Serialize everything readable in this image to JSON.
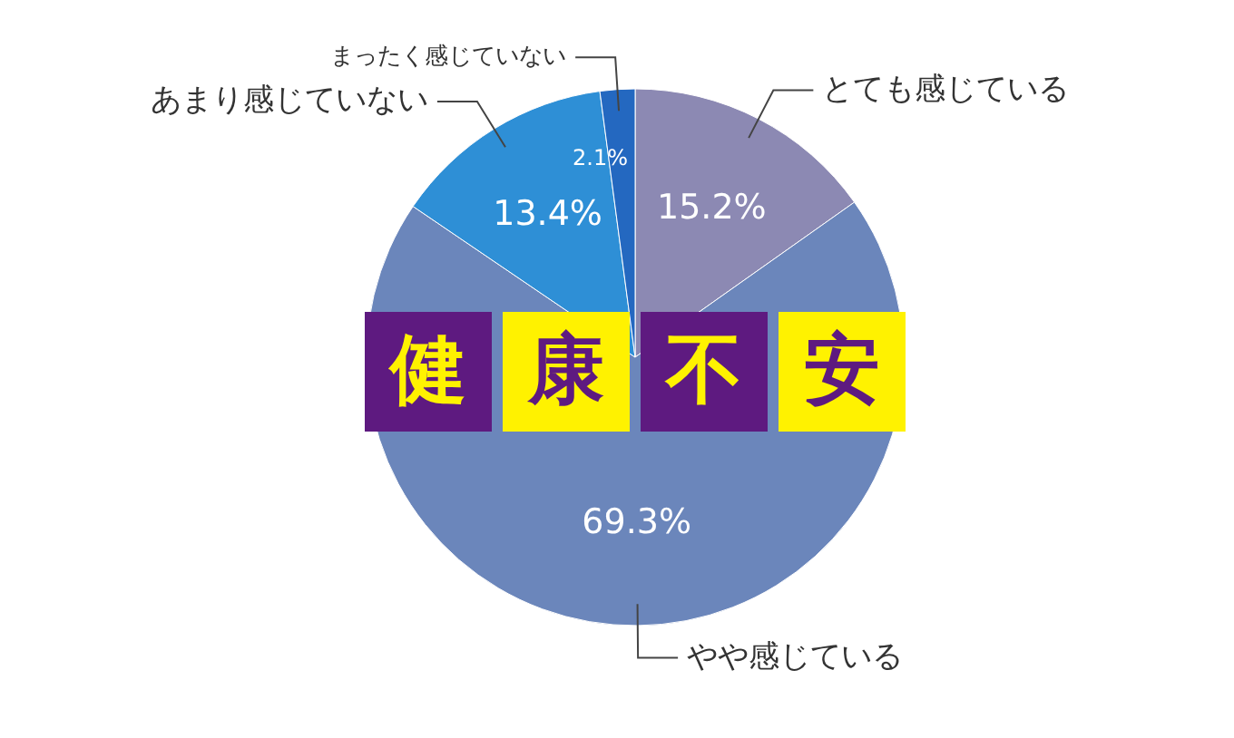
{
  "chart_data": {
    "type": "pie",
    "title": "健康不安",
    "categories": [
      "とても感じている",
      "やや感じている",
      "あまり感じていない",
      "まったく感じていない"
    ],
    "values": [
      15.2,
      69.3,
      13.4,
      2.1
    ],
    "value_labels": [
      "15.2%",
      "69.3%",
      "13.4%",
      "2.1%"
    ],
    "colors": [
      "#8c89b3",
      "#6b86bb",
      "#2e8fd6",
      "#2468c0"
    ]
  }
}
